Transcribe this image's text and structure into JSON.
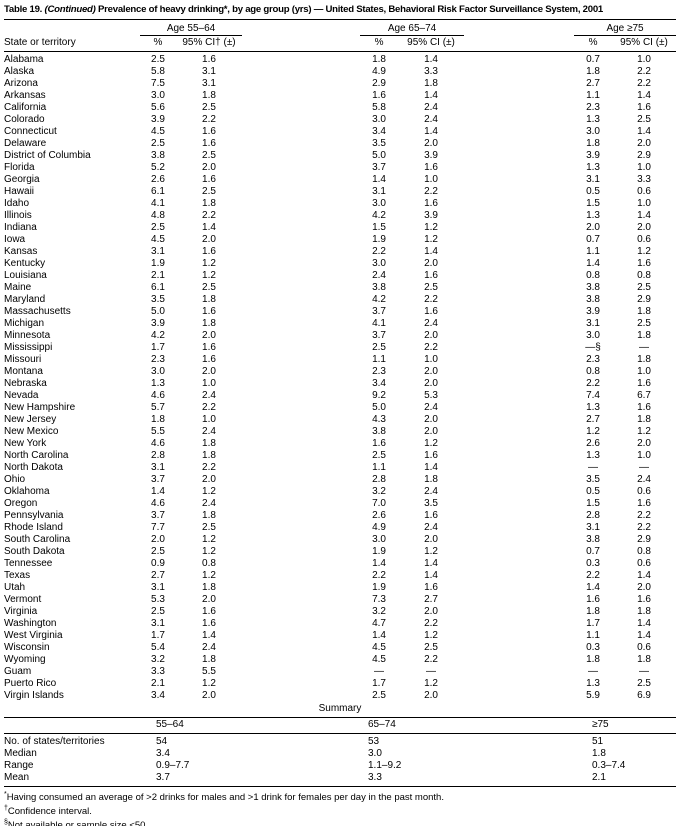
{
  "title": {
    "label": "Table 19.",
    "continued": "(Continued)",
    "text": "Prevalence of heavy drinking*, by age group (yrs) — United States, Behavioral Risk Factor Surveillance System, 2001"
  },
  "table": {
    "state_col_header": "State or territory",
    "groups": [
      {
        "label": "Age 55–64",
        "pct": "%",
        "ci": "95% CI† (±)"
      },
      {
        "label": "Age 65–74",
        "pct": "%",
        "ci": "95% CI (±)"
      },
      {
        "label": "Age ≥75",
        "pct": "%",
        "ci": "95% CI (±)"
      }
    ],
    "rows": [
      [
        "Alabama",
        "2.5",
        "1.6",
        "1.8",
        "1.4",
        "0.7",
        "1.0"
      ],
      [
        "Alaska",
        "5.8",
        "3.1",
        "4.9",
        "3.3",
        "1.8",
        "2.2"
      ],
      [
        "Arizona",
        "7.5",
        "3.1",
        "2.9",
        "1.8",
        "2.7",
        "2.2"
      ],
      [
        "Arkansas",
        "3.0",
        "1.8",
        "1.6",
        "1.4",
        "1.1",
        "1.4"
      ],
      [
        "California",
        "5.6",
        "2.5",
        "5.8",
        "2.4",
        "2.3",
        "1.6"
      ],
      [
        "Colorado",
        "3.9",
        "2.2",
        "3.0",
        "2.4",
        "1.3",
        "2.5"
      ],
      [
        "Connecticut",
        "4.5",
        "1.6",
        "3.4",
        "1.4",
        "3.0",
        "1.4"
      ],
      [
        "Delaware",
        "2.5",
        "1.6",
        "3.5",
        "2.0",
        "1.8",
        "2.0"
      ],
      [
        "District of Columbia",
        "3.8",
        "2.5",
        "5.0",
        "3.9",
        "3.9",
        "2.9"
      ],
      [
        "Florida",
        "5.2",
        "2.0",
        "3.7",
        "1.6",
        "1.3",
        "1.0"
      ],
      [
        "Georgia",
        "2.6",
        "1.6",
        "1.4",
        "1.0",
        "3.1",
        "3.3"
      ],
      [
        "Hawaii",
        "6.1",
        "2.5",
        "3.1",
        "2.2",
        "0.5",
        "0.6"
      ],
      [
        "Idaho",
        "4.1",
        "1.8",
        "3.0",
        "1.6",
        "1.5",
        "1.0"
      ],
      [
        "Illinois",
        "4.8",
        "2.2",
        "4.2",
        "3.9",
        "1.3",
        "1.4"
      ],
      [
        "Indiana",
        "2.5",
        "1.4",
        "1.5",
        "1.2",
        "2.0",
        "2.0"
      ],
      [
        "Iowa",
        "4.5",
        "2.0",
        "1.9",
        "1.2",
        "0.7",
        "0.6"
      ],
      [
        "Kansas",
        "3.1",
        "1.6",
        "2.2",
        "1.4",
        "1.1",
        "1.2"
      ],
      [
        "Kentucky",
        "1.9",
        "1.2",
        "3.0",
        "2.0",
        "1.4",
        "1.6"
      ],
      [
        "Louisiana",
        "2.1",
        "1.2",
        "2.4",
        "1.6",
        "0.8",
        "0.8"
      ],
      [
        "Maine",
        "6.1",
        "2.5",
        "3.8",
        "2.5",
        "3.8",
        "2.5"
      ],
      [
        "Maryland",
        "3.5",
        "1.8",
        "4.2",
        "2.2",
        "3.8",
        "2.9"
      ],
      [
        "Massachusetts",
        "5.0",
        "1.6",
        "3.7",
        "1.6",
        "3.9",
        "1.8"
      ],
      [
        "Michigan",
        "3.9",
        "1.8",
        "4.1",
        "2.4",
        "3.1",
        "2.5"
      ],
      [
        "Minnesota",
        "4.2",
        "2.0",
        "3.7",
        "2.0",
        "3.0",
        "1.8"
      ],
      [
        "Mississippi",
        "1.7",
        "1.6",
        "2.5",
        "2.2",
        "—§",
        "—"
      ],
      [
        "Missouri",
        "2.3",
        "1.6",
        "1.1",
        "1.0",
        "2.3",
        "1.8"
      ],
      [
        "Montana",
        "3.0",
        "2.0",
        "2.3",
        "2.0",
        "0.8",
        "1.0"
      ],
      [
        "Nebraska",
        "1.3",
        "1.0",
        "3.4",
        "2.0",
        "2.2",
        "1.6"
      ],
      [
        "Nevada",
        "4.6",
        "2.4",
        "9.2",
        "5.3",
        "7.4",
        "6.7"
      ],
      [
        "New Hampshire",
        "5.7",
        "2.2",
        "5.0",
        "2.4",
        "1.3",
        "1.6"
      ],
      [
        "New Jersey",
        "1.8",
        "1.0",
        "4.3",
        "2.0",
        "2.7",
        "1.8"
      ],
      [
        "New Mexico",
        "5.5",
        "2.4",
        "3.8",
        "2.0",
        "1.2",
        "1.2"
      ],
      [
        "New York",
        "4.6",
        "1.8",
        "1.6",
        "1.2",
        "2.6",
        "2.0"
      ],
      [
        "North Carolina",
        "2.8",
        "1.8",
        "2.5",
        "1.6",
        "1.3",
        "1.0"
      ],
      [
        "North Dakota",
        "3.1",
        "2.2",
        "1.1",
        "1.4",
        "—",
        "—"
      ],
      [
        "Ohio",
        "3.7",
        "2.0",
        "2.8",
        "1.8",
        "3.5",
        "2.4"
      ],
      [
        "Oklahoma",
        "1.4",
        "1.2",
        "3.2",
        "2.4",
        "0.5",
        "0.6"
      ],
      [
        "Oregon",
        "4.6",
        "2.4",
        "7.0",
        "3.5",
        "1.5",
        "1.6"
      ],
      [
        "Pennsylvania",
        "3.7",
        "1.8",
        "2.6",
        "1.6",
        "2.8",
        "2.2"
      ],
      [
        "Rhode Island",
        "7.7",
        "2.5",
        "4.9",
        "2.4",
        "3.1",
        "2.2"
      ],
      [
        "South Carolina",
        "2.0",
        "1.2",
        "3.0",
        "2.0",
        "3.8",
        "2.9"
      ],
      [
        "South Dakota",
        "2.5",
        "1.2",
        "1.9",
        "1.2",
        "0.7",
        "0.8"
      ],
      [
        "Tennessee",
        "0.9",
        "0.8",
        "1.4",
        "1.4",
        "0.3",
        "0.6"
      ],
      [
        "Texas",
        "2.7",
        "1.2",
        "2.2",
        "1.4",
        "2.2",
        "1.4"
      ],
      [
        "Utah",
        "3.1",
        "1.8",
        "1.9",
        "1.6",
        "1.4",
        "2.0"
      ],
      [
        "Vermont",
        "5.3",
        "2.0",
        "7.3",
        "2.7",
        "1.6",
        "1.6"
      ],
      [
        "Virginia",
        "2.5",
        "1.6",
        "3.2",
        "2.0",
        "1.8",
        "1.8"
      ],
      [
        "Washington",
        "3.1",
        "1.6",
        "4.7",
        "2.2",
        "1.7",
        "1.4"
      ],
      [
        "West Virginia",
        "1.7",
        "1.4",
        "1.4",
        "1.2",
        "1.1",
        "1.4"
      ],
      [
        "Wisconsin",
        "5.4",
        "2.4",
        "4.5",
        "2.5",
        "0.3",
        "0.6"
      ],
      [
        "Wyoming",
        "3.2",
        "1.8",
        "4.5",
        "2.2",
        "1.8",
        "1.8"
      ],
      [
        "Guam",
        "3.3",
        "5.5",
        "—",
        "—",
        "—",
        "—"
      ],
      [
        "Puerto Rico",
        "2.1",
        "1.2",
        "1.7",
        "1.2",
        "1.3",
        "2.5"
      ],
      [
        "Virgin Islands",
        "3.4",
        "2.0",
        "2.5",
        "2.0",
        "5.9",
        "6.9"
      ]
    ]
  },
  "summary": {
    "heading": "Summary",
    "col_headers": [
      "55–64",
      "65–74",
      "≥75"
    ],
    "rows": [
      [
        "No. of states/territories",
        "54",
        "53",
        "51"
      ],
      [
        "Median",
        "3.4",
        "3.0",
        "1.8"
      ],
      [
        "Range",
        "0.9–7.7",
        "1.1–9.2",
        "0.3–7.4"
      ],
      [
        "Mean",
        "3.7",
        "3.3",
        "2.1"
      ]
    ]
  },
  "footnotes": [
    {
      "marker": "*",
      "text": "Having consumed an average of >2 drinks for males and >1 drink for females per day in the past month."
    },
    {
      "marker": "†",
      "text": "Confidence interval."
    },
    {
      "marker": "§",
      "text": "Not available or sample size <50."
    }
  ]
}
